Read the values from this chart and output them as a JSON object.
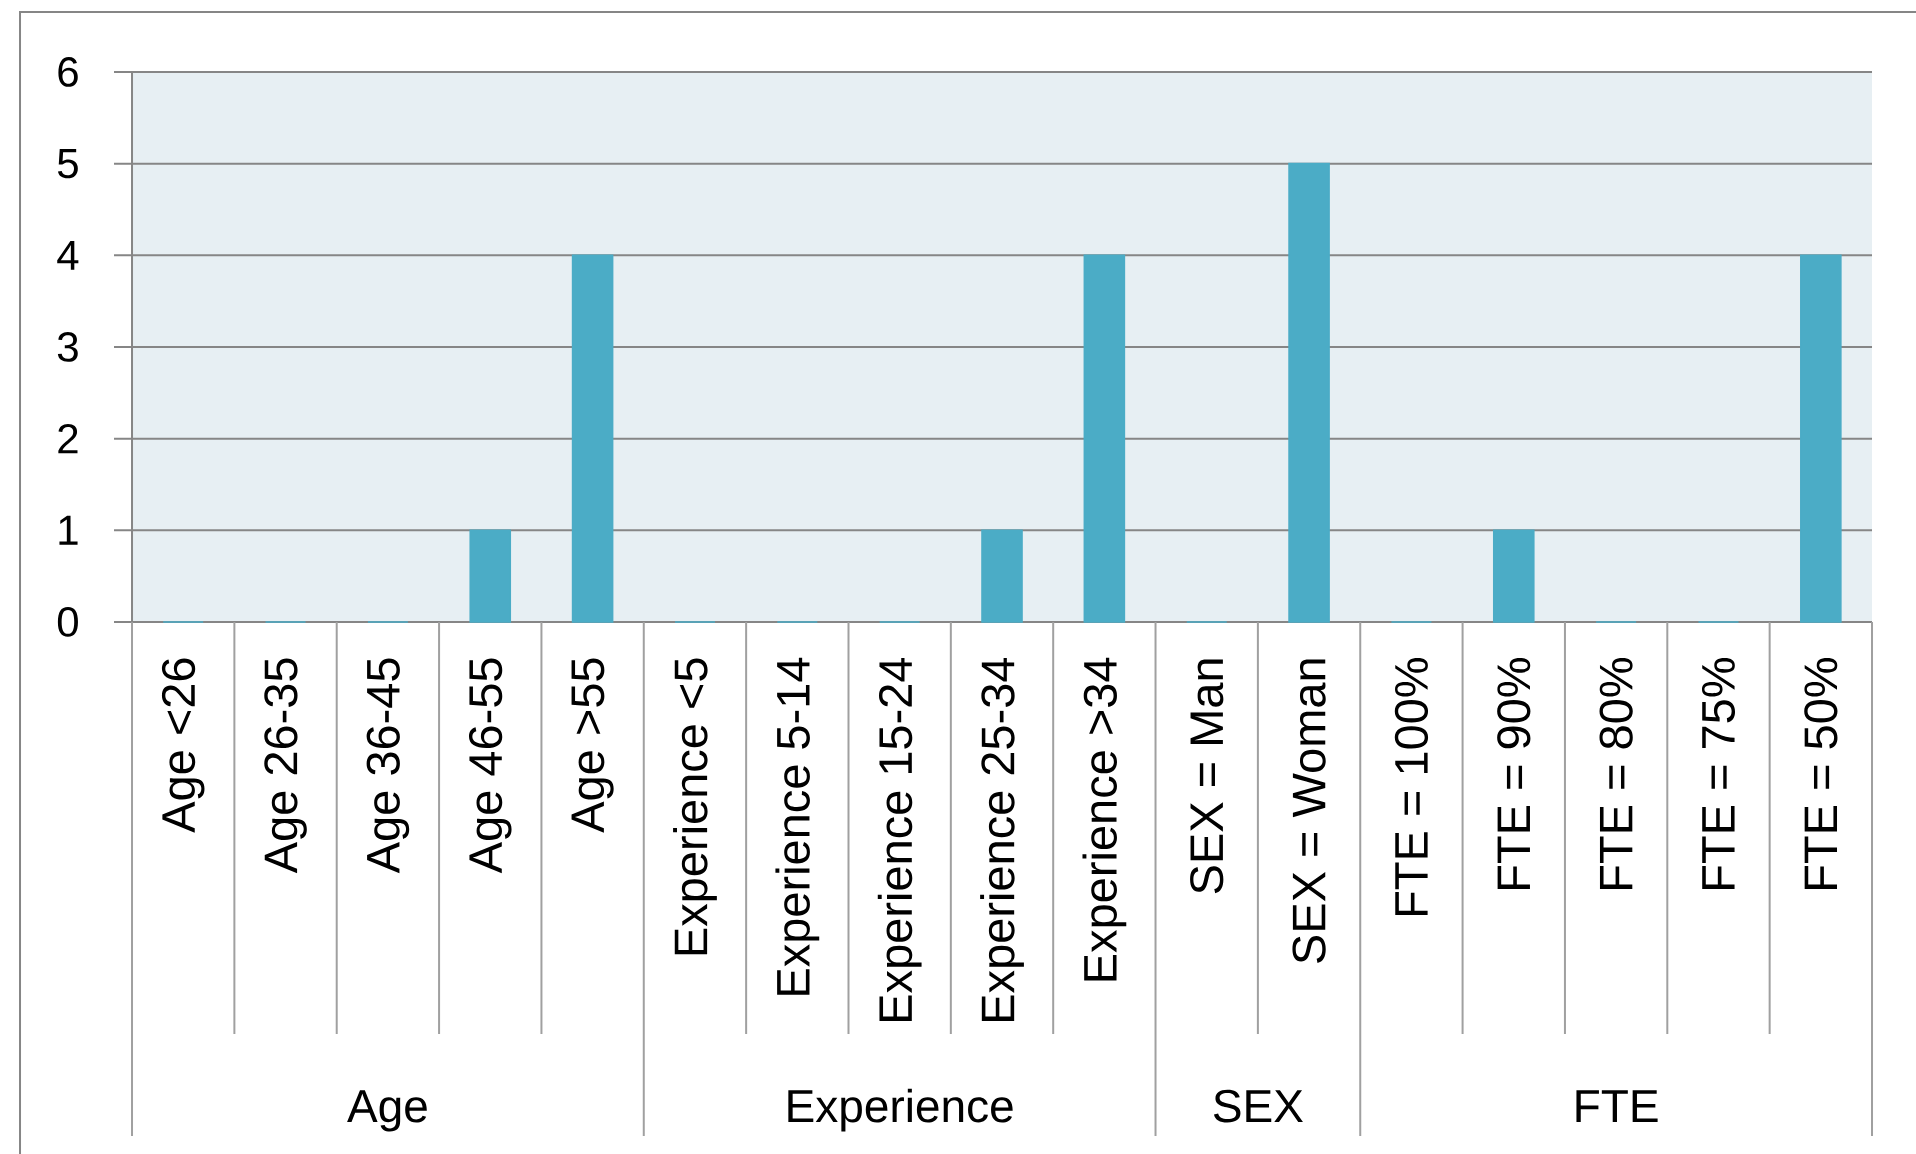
{
  "chart_data": {
    "type": "bar",
    "categories": [
      "Age <26",
      "Age 26-35",
      "Age 36-45",
      "Age 46-55",
      "Age >55",
      "Experience <5",
      "Experience 5-14",
      "Experience 15-24",
      "Experience 25-34",
      "Experience >34",
      "SEX = Man",
      "SEX = Woman",
      "FTE = 100%",
      "FTE = 90%",
      "FTE = 80%",
      "FTE = 75%",
      "FTE = 50%"
    ],
    "values": [
      0,
      0,
      0,
      1,
      4,
      0,
      0,
      0,
      1,
      4,
      0,
      5,
      0,
      1,
      0,
      0,
      4
    ],
    "color": "#4bacc6",
    "ylim": [
      0,
      6
    ],
    "yticks": [
      0,
      1,
      2,
      3,
      4,
      5,
      6
    ],
    "grid": "y",
    "annotations": [
      "Age",
      "Experience",
      "SEX",
      "FTE"
    ]
  }
}
